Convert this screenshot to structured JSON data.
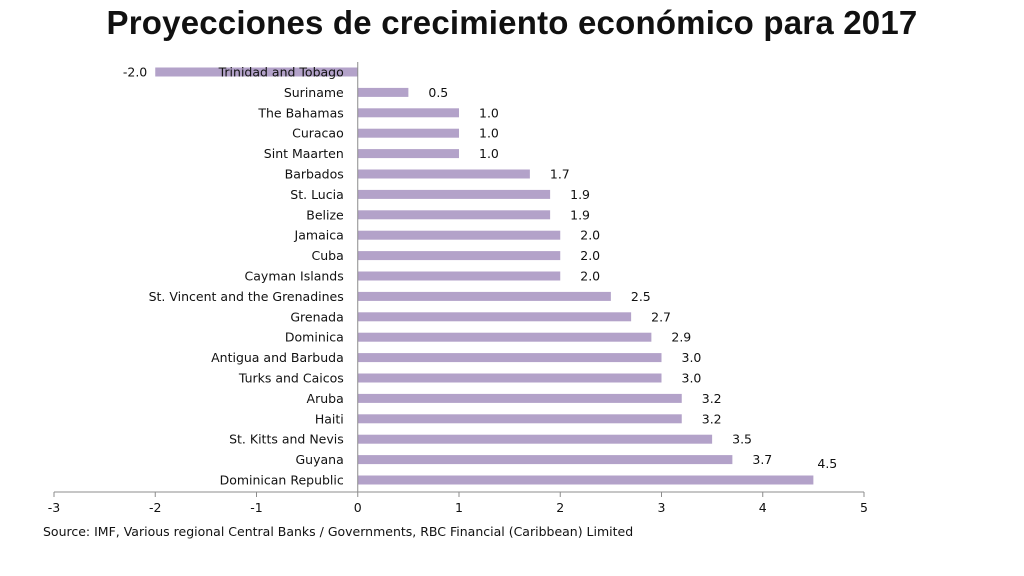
{
  "chart_data": {
    "type": "bar",
    "orientation": "horizontal",
    "title": "Proyecciones de crecimiento económico para 2017",
    "categories": [
      "Trinidad and Tobago",
      "Suriname",
      "The Bahamas",
      "Curacao",
      "Sint Maarten",
      "Barbados",
      "St. Lucia",
      "Belize",
      "Jamaica",
      "Cuba",
      "Cayman Islands",
      "St. Vincent and the Grenadines",
      "Grenada",
      "Dominica",
      "Antigua and Barbuda",
      "Turks and Caicos",
      "Aruba",
      "Haiti",
      "St. Kitts and Nevis",
      "Guyana",
      "Dominican Republic"
    ],
    "values": [
      -2.0,
      0.5,
      1.0,
      1.0,
      1.0,
      1.7,
      1.9,
      1.9,
      2.0,
      2.0,
      2.0,
      2.5,
      2.7,
      2.9,
      3.0,
      3.0,
      3.2,
      3.2,
      3.5,
      3.7,
      4.5
    ],
    "value_labels": [
      "-2.0",
      "0.5",
      "1.0",
      "1.0",
      "1.0",
      "1.7",
      "1.9",
      "1.9",
      "2.0",
      "2.0",
      "2.0",
      "2.5",
      "2.7",
      "2.9",
      "3.0",
      "3.0",
      "3.2",
      "3.2",
      "3.5",
      "3.7",
      "4.5"
    ],
    "xlim": [
      -3,
      5
    ],
    "xticks": [
      -3,
      -2,
      -1,
      0,
      1,
      2,
      3,
      4,
      5
    ],
    "xlabel": "",
    "ylabel": "",
    "grid": false,
    "legend": "none",
    "bar_color": "#b3a2c9",
    "source": "Source: IMF, Various regional Central Banks / Governments, RBC Financial (Caribbean) Limited"
  }
}
